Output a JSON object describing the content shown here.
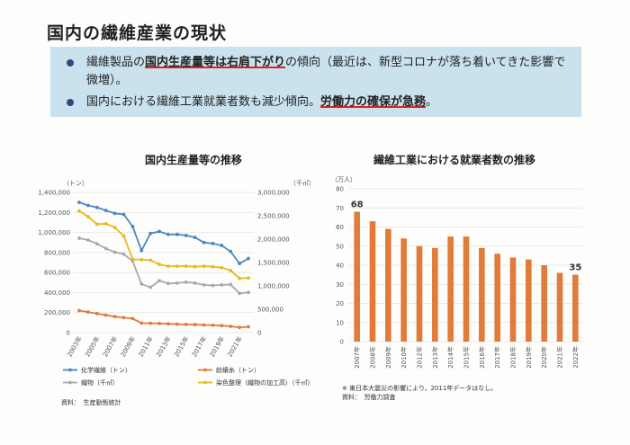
{
  "page": {
    "title": "国内の繊維産業の現状",
    "bullets": [
      {
        "pre": "繊維製品の",
        "highlight": "国内生産量等は右肩下がり",
        "post": "の傾向（最近は、新型コロナが落ち着いてきた影響で微増）。"
      },
      {
        "pre": "国内における繊維工業就業者数も減少傾向。",
        "highlight": "労働力の確保が急務",
        "post": "。"
      }
    ]
  },
  "chart_data": [
    {
      "type": "line",
      "title": "国内生産量等の推移",
      "left_unit": "（トン）",
      "right_unit": "（千㎡）",
      "left_ylim": [
        0,
        1400000
      ],
      "right_ylim": [
        0,
        3000000
      ],
      "left_ticks": [
        "1,400,000",
        "1,200,000",
        "1,000,000",
        "800,000",
        "600,000",
        "400,000",
        "200,000",
        "0"
      ],
      "right_ticks": [
        "3,000,000",
        "2,500,000",
        "2,000,000",
        "1,500,000",
        "1,000,000",
        "500,000",
        "0"
      ],
      "x": [
        2003,
        2004,
        2005,
        2006,
        2007,
        2008,
        2009,
        2010,
        2011,
        2012,
        2013,
        2014,
        2015,
        2016,
        2017,
        2018,
        2019,
        2020,
        2021,
        2022
      ],
      "x_tick_labels": [
        "2003年",
        "2005年",
        "2007年",
        "2009年",
        "2011年",
        "2013年",
        "2015年",
        "2017年",
        "2019年",
        "2021年"
      ],
      "series": [
        {
          "name": "化学繊維（トン）",
          "axis": "left",
          "color": "#4a86c5",
          "values": [
            1300000,
            1270000,
            1250000,
            1220000,
            1190000,
            1180000,
            1060000,
            820000,
            990000,
            1010000,
            980000,
            980000,
            970000,
            950000,
            900000,
            890000,
            870000,
            810000,
            690000,
            740000
          ]
        },
        {
          "name": "紡績糸（トン）",
          "axis": "left",
          "color": "#e07b39",
          "values": [
            220000,
            205000,
            190000,
            175000,
            160000,
            150000,
            140000,
            95000,
            93000,
            92000,
            88000,
            84000,
            82000,
            80000,
            76000,
            74000,
            70000,
            63000,
            52000,
            58000
          ]
        },
        {
          "name": "織物（千㎡）",
          "axis": "right",
          "color": "#a9a9a9",
          "values": [
            2020000,
            1980000,
            1900000,
            1800000,
            1720000,
            1680000,
            1530000,
            1040000,
            970000,
            1110000,
            1050000,
            1060000,
            1080000,
            1060000,
            1020000,
            1010000,
            1020000,
            1030000,
            840000,
            860000
          ]
        },
        {
          "name": "染色整理（織物の加工高）（千㎡）",
          "axis": "right",
          "color": "#e8b820",
          "values": [
            2600000,
            2480000,
            2320000,
            2330000,
            2250000,
            2070000,
            1570000,
            1560000,
            1550000,
            1460000,
            1420000,
            1420000,
            1420000,
            1410000,
            1420000,
            1410000,
            1390000,
            1330000,
            1160000,
            1170000
          ]
        }
      ],
      "source": "資料：　生産動態統計"
    },
    {
      "type": "bar",
      "title": "繊維工業における就業者数の推移",
      "unit": "（万人）",
      "ylim": [
        0,
        80
      ],
      "y_ticks": [
        0,
        10,
        20,
        30,
        40,
        50,
        60,
        70,
        80
      ],
      "categories": [
        "2007年",
        "2008年",
        "2009年",
        "2010年",
        "2012年",
        "2013年",
        "2014年",
        "2015年",
        "2016年",
        "2017年",
        "2018年",
        "2019年",
        "2020年",
        "2021年",
        "2022年"
      ],
      "values": [
        68,
        63,
        59,
        54,
        50,
        49,
        55,
        55,
        49,
        46,
        44,
        43,
        40,
        36,
        35
      ],
      "color": "#e07b39",
      "data_labels": {
        "0": "68",
        "14": "35"
      },
      "note": "※ 東日本大震災の影響により，2011年データはなし。",
      "source": "資料：　労働力調査"
    }
  ]
}
